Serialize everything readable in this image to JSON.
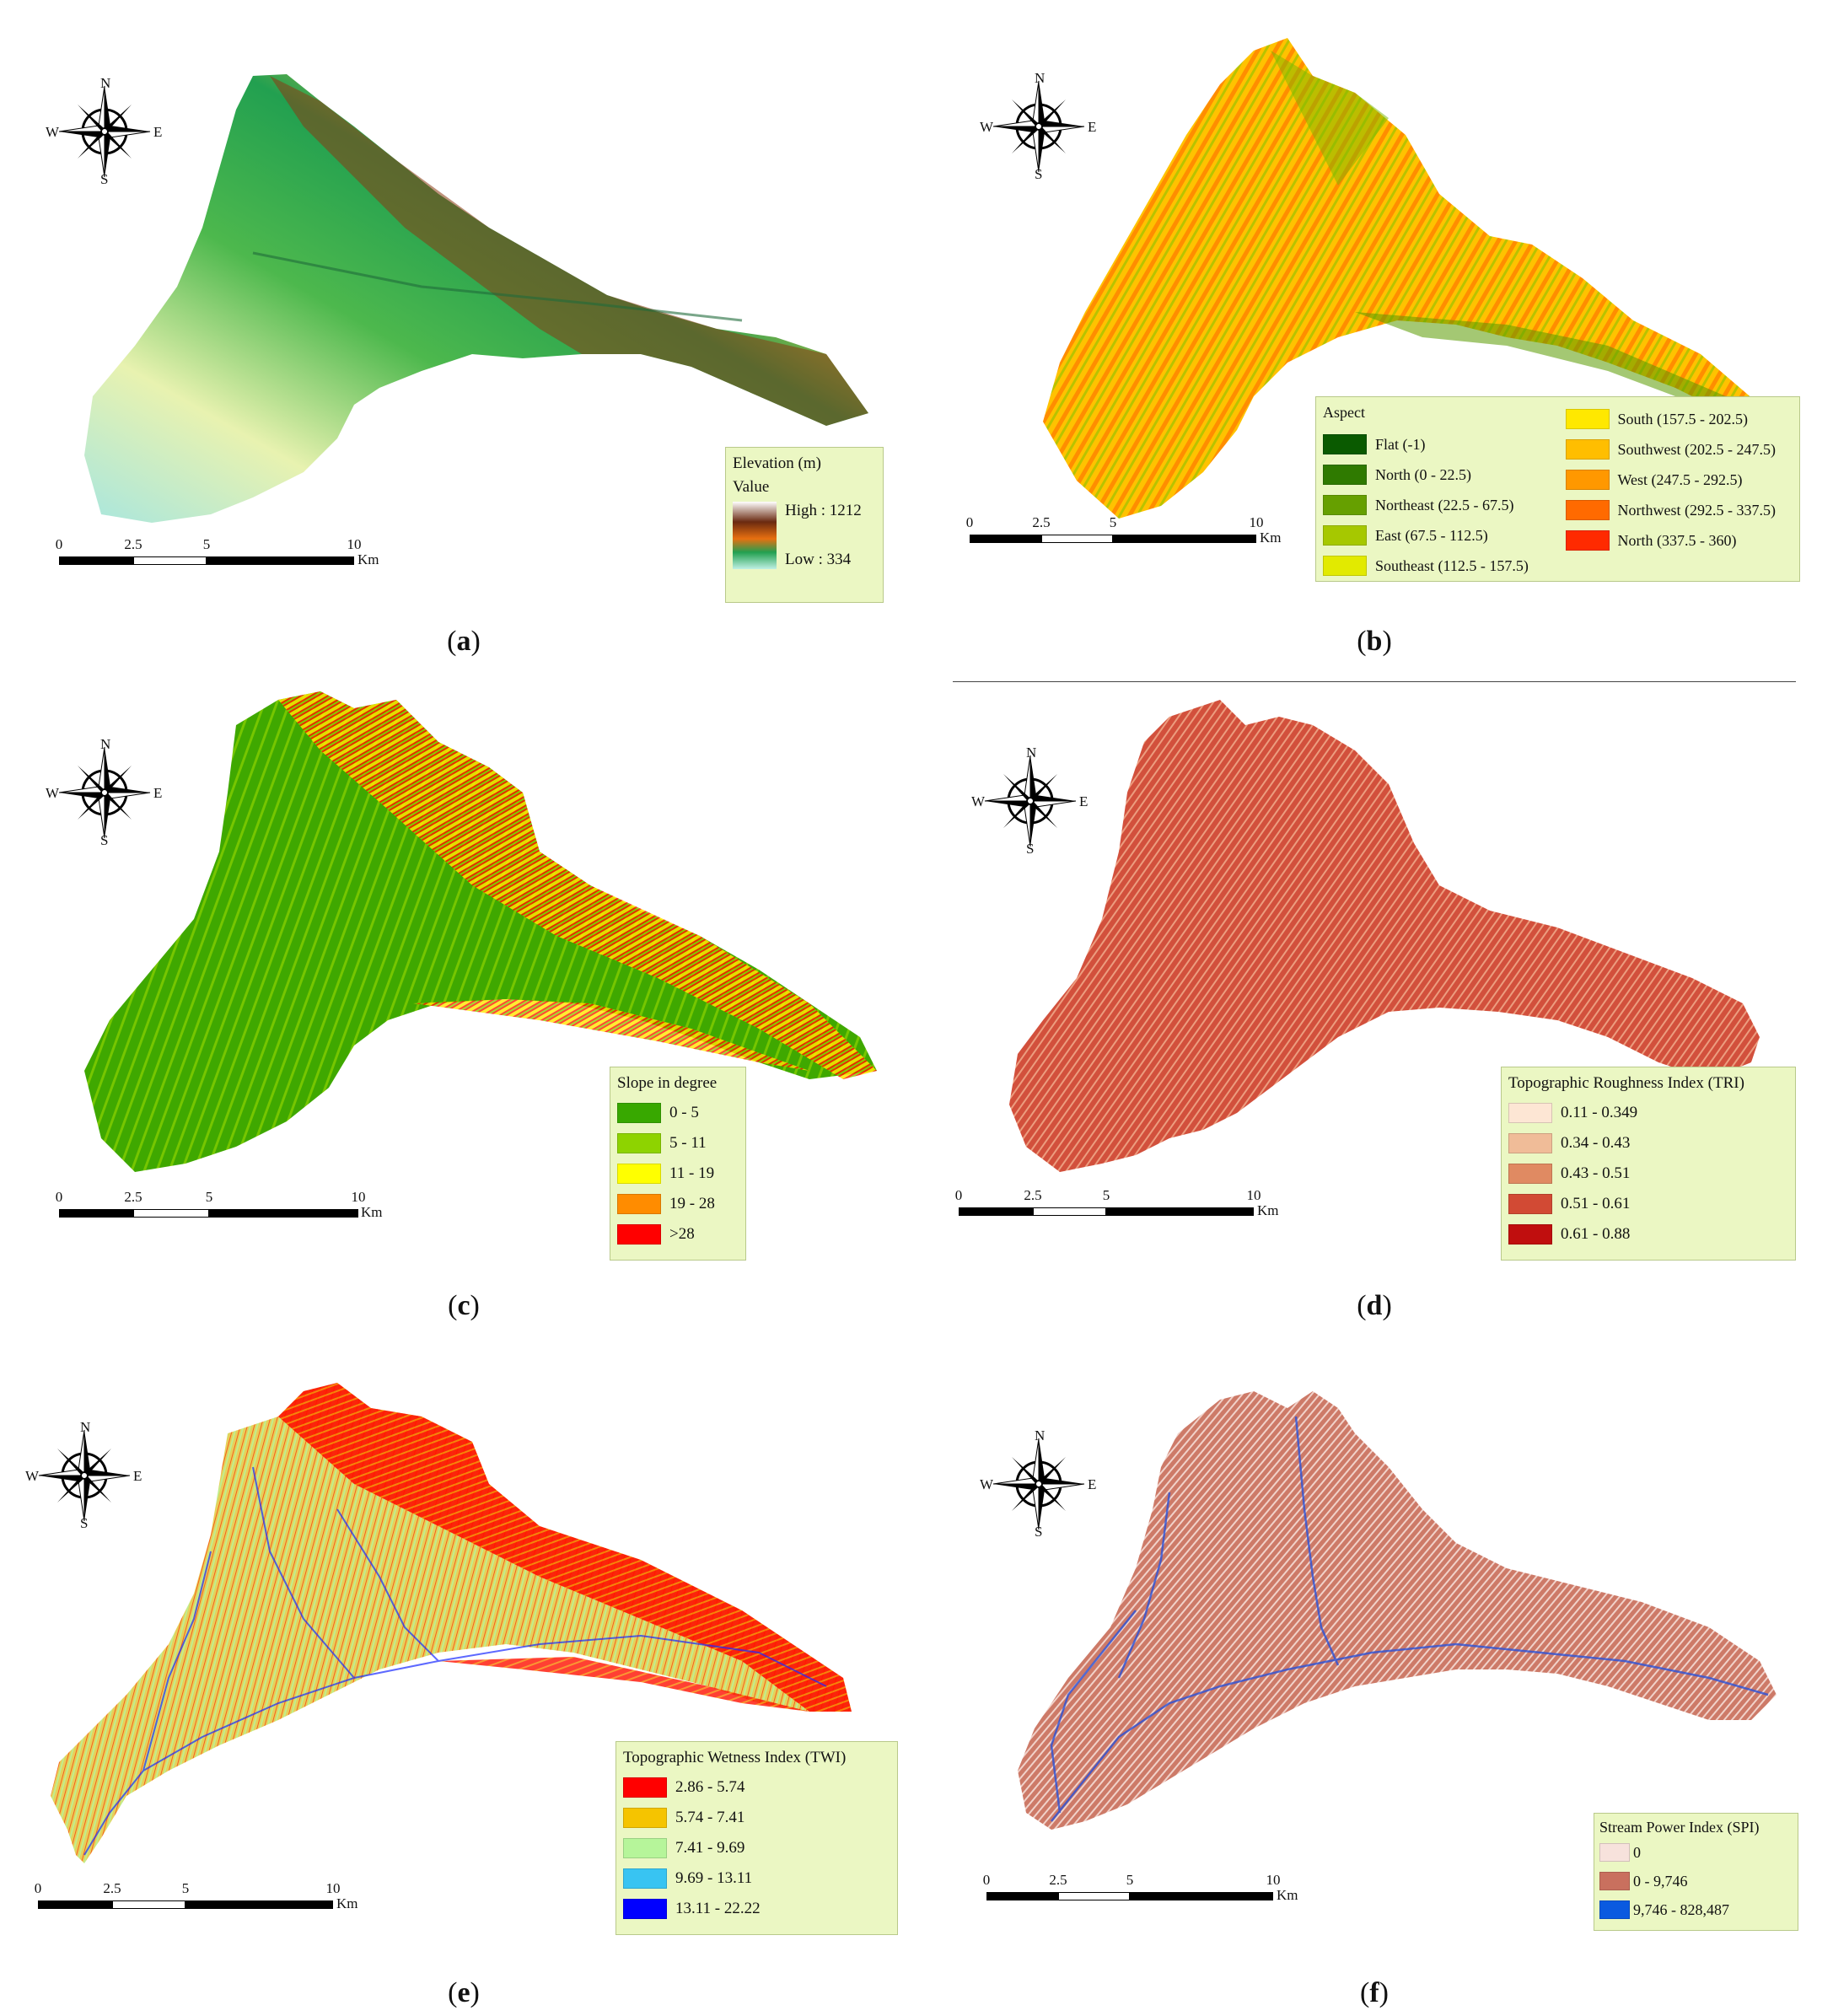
{
  "compass": {
    "n": "N",
    "s": "S",
    "e": "E",
    "w": "W"
  },
  "scale": {
    "ticks": [
      "0",
      "2.5",
      "5",
      "10"
    ],
    "unit": "Km"
  },
  "panels": {
    "a": {
      "caption_letter": "a",
      "legend": {
        "title": "Elevation (m)",
        "subtitle": "Value",
        "high": "High : 1212",
        "low": "Low : 334"
      }
    },
    "b": {
      "caption_letter": "b",
      "legend": {
        "title": "Aspect",
        "items": [
          {
            "label": "Flat (-1)",
            "color": "#0a5a00"
          },
          {
            "label": "North (0 - 22.5)",
            "color": "#2f7a00"
          },
          {
            "label": "Northeast (22.5 - 67.5)",
            "color": "#66a000"
          },
          {
            "label": "East (67.5 - 112.5)",
            "color": "#a6c800"
          },
          {
            "label": "Southeast (112.5 - 157.5)",
            "color": "#e2ea00"
          },
          {
            "label": "South (157.5 - 202.5)",
            "color": "#ffe800"
          },
          {
            "label": "Southwest (202.5 - 247.5)",
            "color": "#ffbe00"
          },
          {
            "label": "West (247.5 - 292.5)",
            "color": "#ff9800"
          },
          {
            "label": "Northwest (292.5 - 337.5)",
            "color": "#ff6a00"
          },
          {
            "label": "North (337.5 - 360)",
            "color": "#ff2a00"
          }
        ]
      }
    },
    "c": {
      "caption_letter": "c",
      "legend": {
        "title": "Slope in degree",
        "items": [
          {
            "label": "0 - 5",
            "color": "#38a800"
          },
          {
            "label": "5 - 11",
            "color": "#8ed300"
          },
          {
            "label": "11 - 19",
            "color": "#ffff00"
          },
          {
            "label": "19 - 28",
            "color": "#ff8c00"
          },
          {
            "label": ">28",
            "color": "#ff0000"
          }
        ]
      }
    },
    "d": {
      "caption_letter": "d",
      "legend": {
        "title": "Topographic Roughness Index (TRI)",
        "items": [
          {
            "label": "0.11 - 0.349",
            "color": "#fde6d4"
          },
          {
            "label": "0.34 - 0.43",
            "color": "#f0bc98"
          },
          {
            "label": "0.43 - 0.51",
            "color": "#e08a62"
          },
          {
            "label": "0.51 - 0.61",
            "color": "#d24a34"
          },
          {
            "label": "0.61 - 0.88",
            "color": "#c00e0e"
          }
        ]
      }
    },
    "e": {
      "caption_letter": "e",
      "legend": {
        "title": "Topographic Wetness Index (TWI)",
        "items": [
          {
            "label": "2.86 - 5.74",
            "color": "#ff0000"
          },
          {
            "label": "5.74 - 7.41",
            "color": "#f5c400"
          },
          {
            "label": "7.41 - 9.69",
            "color": "#b6f59a"
          },
          {
            "label": "9.69 - 13.11",
            "color": "#38c4f2"
          },
          {
            "label": "13.11 - 22.22",
            "color": "#0000ff"
          }
        ]
      }
    },
    "f": {
      "caption_letter": "f",
      "legend": {
        "title": "Stream Power Index (SPI)",
        "items": [
          {
            "label": "0",
            "color": "#f7e2dc"
          },
          {
            "label": "0 - 9,746",
            "color": "#c9705e"
          },
          {
            "label": "9,746 - 828,487",
            "color": "#0a5ae0"
          }
        ]
      }
    }
  }
}
